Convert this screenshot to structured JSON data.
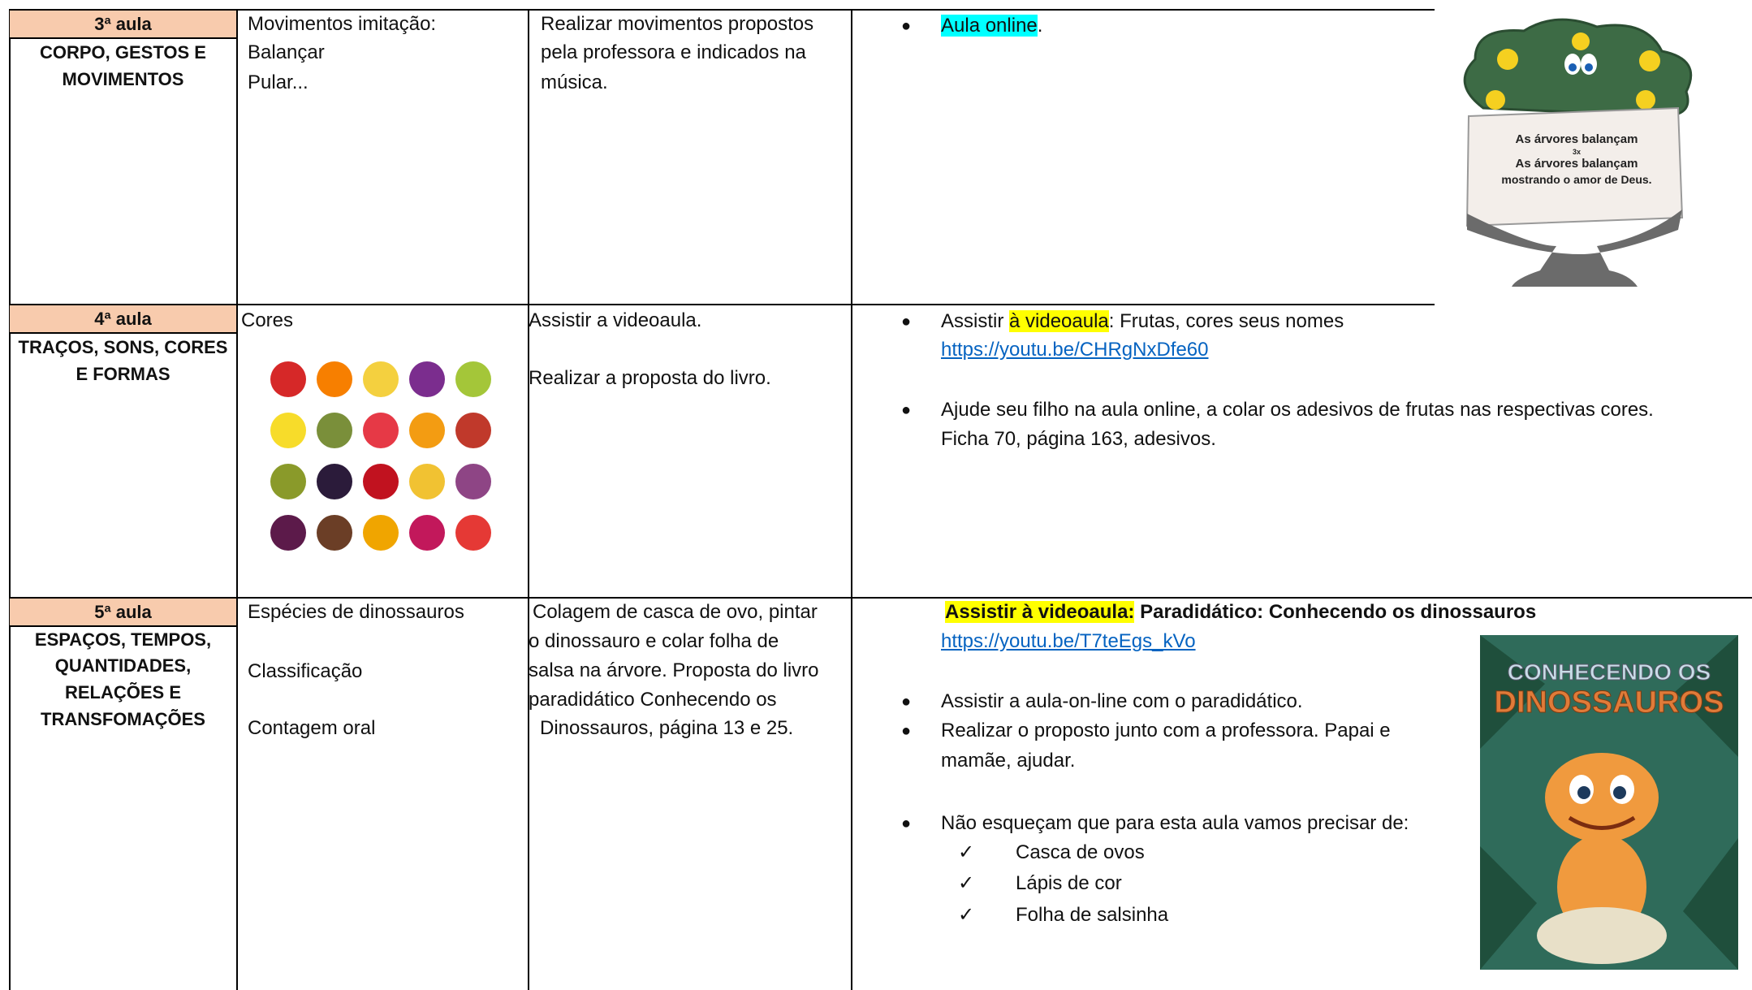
{
  "rows": [
    {
      "label": "3ª aula",
      "area": [
        "CORPO, GESTOS E",
        "MOVIMENTOS"
      ],
      "content": [
        "Movimentos imitação:",
        "Balançar",
        "Pular..."
      ],
      "activity": [
        "Realizar movimentos propostos",
        "pela professora e indicados na",
        "música."
      ],
      "notes": [
        "Aula online",
        "."
      ]
    },
    {
      "label": "4ª aula",
      "area": [
        "TRAÇOS, SONS, CORES",
        "E FORMAS"
      ],
      "content": [
        "Cores"
      ],
      "activity": [
        "Assistir a videoaula.",
        "Realizar a proposta do livro."
      ],
      "notes": [
        "Assistir ",
        "à videoaula",
        ": Frutas, cores seus nomes",
        "Ajude seu filho na aula online, a colar os adesivos de frutas nas respectivas cores.",
        "Ficha 70, página 163, adesivos."
      ],
      "link": "https://youtu.be/CHRgNxDfe60"
    },
    {
      "label": "5ª aula",
      "area": [
        "ESPAÇOS, TEMPOS,",
        "QUANTIDADES,",
        "RELAÇÕES E",
        "TRANSFOMAÇÕES"
      ],
      "content": [
        "Espécies de dinossauros",
        "Classificação",
        "Contagem oral"
      ],
      "activity": [
        "Colagem de casca de ovo, pintar",
        "o dinossauro e colar folha de",
        "salsa na árvore. Proposta do livro",
        "paradidático Conhecendo os",
        "Dinossauros, página 13 e 25."
      ],
      "heading": [
        "Assistir à videoaula:",
        "  Paradidático: Conhecendo os dinossauros"
      ],
      "link": "https://youtu.be/T7teEgs_kVo",
      "notes": [
        "Assistir a aula-on-line com o paradidático.",
        "Realizar o proposto junto com a professora. Papai e",
        "mamãe, ajudar.",
        "Não esqueçam que para esta aula vamos precisar de:"
      ],
      "materials": [
        "Casca de ovos",
        "Lápis de cor",
        "Folha de salsinha"
      ]
    }
  ],
  "tree": {
    "lines": [
      "As árvores balançam",
      "3x",
      "As árvores balançam",
      "mostrando o amor de Deus."
    ]
  },
  "book": {
    "title": [
      "CONHECENDO OS",
      "DINOSSAUROS"
    ]
  }
}
